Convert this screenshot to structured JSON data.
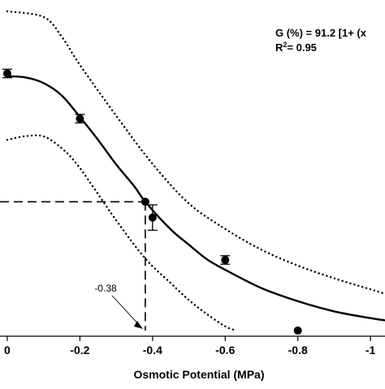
{
  "chart_data": {
    "type": "scatter",
    "xlabel": "Osmotic Potential (MPa)",
    "ylabel": "",
    "xlim": [
      0.02,
      -1.04
    ],
    "ylim": [
      -2,
      117
    ],
    "x_ticks": [
      0,
      -0.2,
      -0.4,
      -0.6,
      -0.8,
      -1.0
    ],
    "x_tick_labels": [
      "0",
      "-0.2",
      "-0.4",
      "-0.6",
      "-0.8",
      "-1"
    ],
    "grid": false,
    "equation_line1": "G (%) = 91.2 [1+ (x",
    "r2_prefix": "R",
    "r2_sup": "2",
    "r2_suffix": "= 0.95",
    "series": [
      {
        "points": [
          {
            "x": 0.0,
            "y": 91,
            "err": 1.5
          },
          {
            "x": -0.2,
            "y": 75,
            "err": 1.5
          },
          {
            "x": -0.38,
            "y": 45.6,
            "err": 0
          },
          {
            "x": -0.4,
            "y": 40,
            "err": 4.5
          },
          {
            "x": -0.6,
            "y": 25,
            "err": 1.5
          },
          {
            "x": -0.8,
            "y": 0,
            "err": 0
          }
        ]
      }
    ],
    "fitted_curve": {
      "x": [
        0.0,
        -0.05,
        -0.1,
        -0.15,
        -0.2,
        -0.25,
        -0.3,
        -0.35,
        -0.38,
        -0.45,
        -0.5,
        -0.55,
        -0.6,
        -0.7,
        -0.8,
        -0.9,
        -1.0,
        -1.04
      ],
      "y": [
        90,
        89.6,
        87.6,
        83.2,
        75.6,
        67.5,
        58.8,
        51,
        45.6,
        35.8,
        30.4,
        25.2,
        21.5,
        15,
        10.4,
        6.8,
        4.4,
        3.6
      ]
    },
    "confidence_upper": {
      "x": [
        0.0,
        -0.1,
        -0.15,
        -0.2,
        -0.3,
        -0.4,
        -0.5,
        -0.6,
        -0.7,
        -0.8,
        -0.9,
        -1.0,
        -1.04
      ],
      "y": [
        113,
        111,
        104,
        94,
        76,
        59,
        45,
        36,
        28.6,
        23,
        18.5,
        14.6,
        13
      ]
    },
    "confidence_lower": {
      "x": [
        0.0,
        -0.05,
        -0.1,
        -0.15,
        -0.2,
        -0.3,
        -0.38,
        -0.45,
        -0.5,
        -0.55,
        -0.6,
        -0.63
      ],
      "y": [
        67.5,
        68.8,
        68.7,
        64.5,
        57.5,
        39,
        25.5,
        16.8,
        10.8,
        5.8,
        1.5,
        0
      ]
    },
    "reference_x": -0.38,
    "reference_y": 45.6,
    "annotation": "-0.38"
  }
}
